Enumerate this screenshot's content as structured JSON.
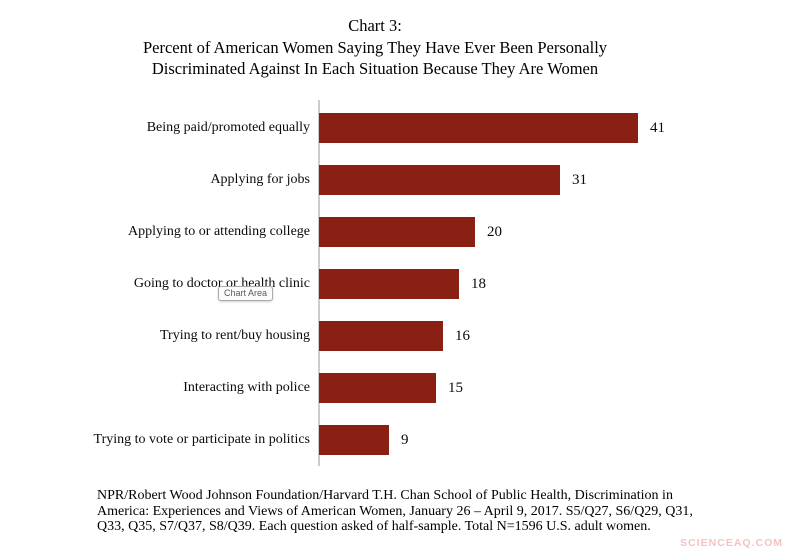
{
  "title": {
    "lines": [
      "Chart 3:",
      "Percent of American Women Saying They Have Ever Been Personally",
      "Discriminated Against In Each Situation Because They Are Women"
    ]
  },
  "chart_data": {
    "type": "bar",
    "orientation": "horizontal",
    "categories": [
      "Being paid/promoted equally",
      "Applying for jobs",
      "Applying to or attending college",
      "Going to doctor or health clinic",
      "Trying to rent/buy housing",
      "Interacting with police",
      "Trying to vote or participate in politics"
    ],
    "values": [
      41,
      31,
      20,
      18,
      16,
      15,
      9
    ],
    "xlim": [
      0,
      41
    ],
    "grid": false,
    "data_labels": true,
    "bar_color": "#8a1f13",
    "axis_line_color": "#cccccc",
    "legend": "none"
  },
  "tooltip": {
    "label": "Chart Area"
  },
  "footer": {
    "lines": [
      "NPR/Robert Wood Johnson Foundation/Harvard T.H. Chan School of Public Health, Discrimination in",
      "America: Experiences and Views of American Women, January 26 – April 9, 2017. S5/Q27, S6/Q29, Q31,",
      "Q33, Q35, S7/Q37, S8/Q39. Each question asked of half-sample. Total N=1596 U.S. adult women."
    ]
  },
  "watermark": {
    "text": "SCIENCEAQ.COM",
    "color": "#f4c3c0"
  }
}
